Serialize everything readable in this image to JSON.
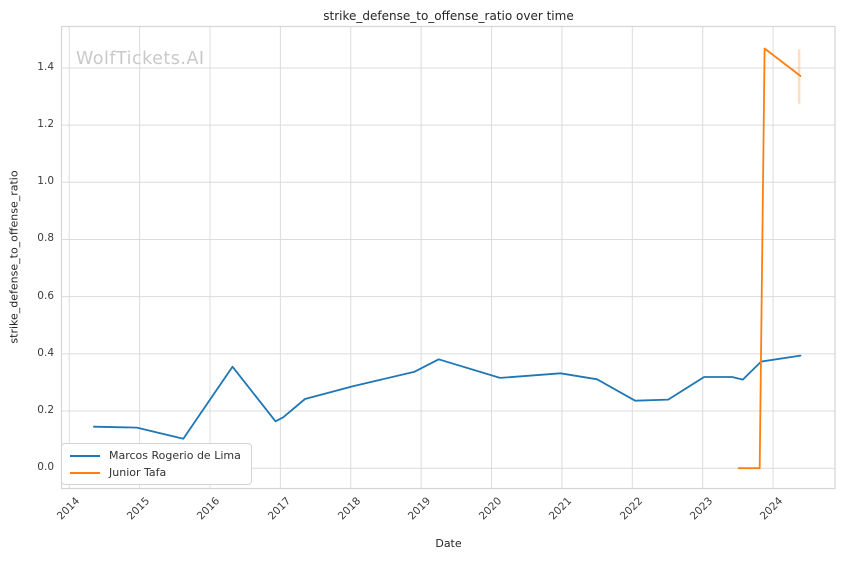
{
  "figure": {
    "title": "strike_defense_to_offense_ratio over time",
    "watermark": "WolfTickets.AI",
    "xlabel": "Date",
    "ylabel": "strike_defense_to_offense_ratio"
  },
  "legend": {
    "items": [
      {
        "label": "Marcos Rogerio de Lima",
        "color": "#1f77b4"
      },
      {
        "label": "Junior Tafa",
        "color": "#ff7f0e"
      }
    ]
  },
  "chart_data": {
    "type": "line",
    "title": "strike_defense_to_offense_ratio over time",
    "xlabel": "Date",
    "ylabel": "strike_defense_to_offense_ratio",
    "x_ticks": [
      2014,
      2015,
      2016,
      2017,
      2018,
      2019,
      2020,
      2021,
      2022,
      2023,
      2024
    ],
    "y_ticks": [
      0.0,
      0.2,
      0.4,
      0.6,
      0.8,
      1.0,
      1.2,
      1.4
    ],
    "xlim": [
      2013.89,
      2024.88
    ],
    "ylim": [
      -0.071,
      1.545
    ],
    "grid": true,
    "legend_position": "lower left",
    "series": [
      {
        "name": "Marcos Rogerio de Lima",
        "color": "#1f77b4",
        "x": [
          2014.35,
          2014.96,
          2015.62,
          2016.32,
          2016.93,
          2017.04,
          2017.35,
          2018.03,
          2018.9,
          2019.25,
          2020.12,
          2020.98,
          2021.5,
          2022.04,
          2022.51,
          2023.02,
          2023.42,
          2023.57,
          2023.83,
          2024.39
        ],
        "y": [
          0.145,
          0.142,
          0.103,
          0.355,
          0.164,
          0.178,
          0.242,
          0.287,
          0.337,
          0.381,
          0.316,
          0.332,
          0.311,
          0.236,
          0.24,
          0.319,
          0.319,
          0.31,
          0.373,
          0.394
        ]
      },
      {
        "name": "Junior Tafa",
        "color": "#ff7f0e",
        "x": [
          2023.51,
          2023.81,
          2023.88,
          2024.39
        ],
        "y": [
          0.0,
          0.0,
          1.468,
          1.372
        ]
      }
    ],
    "error_band": {
      "series": "Junior Tafa",
      "x": 2024.37,
      "y_min": 1.275,
      "y_max": 1.465,
      "opacity": 0.25
    }
  },
  "style_colors": {
    "grid": "#dcdcdc",
    "frame": "#d5d5d5",
    "tick_text": "#3b3b3b",
    "title_text": "#262626",
    "watermark_text": "#c9c9c9"
  }
}
